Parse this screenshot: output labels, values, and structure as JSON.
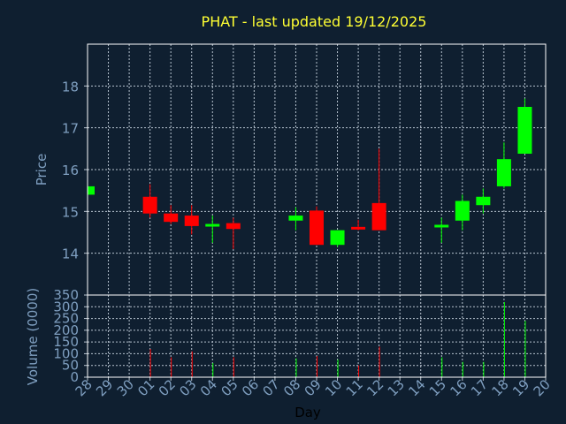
{
  "chart_data": {
    "type": "candlestick",
    "title": "PHAT - last updated 19/12/2025",
    "xlabel": "Day",
    "price_panel": {
      "ylabel": "Price",
      "yticks": [
        14,
        15,
        16,
        17,
        18
      ],
      "ylim": [
        13.0,
        19.0
      ],
      "grid": true
    },
    "volume_panel": {
      "ylabel": "Volume (0000)",
      "yticks": [
        0,
        50,
        100,
        150,
        200,
        250,
        300,
        350
      ],
      "ylim": [
        0,
        350
      ],
      "grid": true
    },
    "x_ticks": [
      "28",
      "29",
      "30",
      "01",
      "02",
      "03",
      "04",
      "05",
      "06",
      "07",
      "08",
      "09",
      "10",
      "11",
      "12",
      "13",
      "14",
      "15",
      "16",
      "17",
      "18",
      "19",
      "20"
    ],
    "colors": {
      "up": "#00ff00",
      "down": "#ff0000",
      "title": "#ffff33",
      "axis_text": "#7f9fc0",
      "grid": "#b8c4d0",
      "background": "#0f1f30"
    },
    "candles": [
      {
        "day": "28",
        "open": 15.4,
        "high": 15.6,
        "low": 15.4,
        "close": 15.6,
        "volume": 0
      },
      {
        "day": "01",
        "open": 15.35,
        "high": 15.65,
        "low": 14.85,
        "close": 14.95,
        "volume": 120
      },
      {
        "day": "02",
        "open": 14.95,
        "high": 15.15,
        "low": 14.7,
        "close": 14.75,
        "volume": 85
      },
      {
        "day": "03",
        "open": 14.9,
        "high": 15.15,
        "low": 14.45,
        "close": 14.65,
        "volume": 110
      },
      {
        "day": "04",
        "open": 14.68,
        "high": 14.9,
        "low": 14.25,
        "close": 14.7,
        "volume": 60
      },
      {
        "day": "05",
        "open": 14.72,
        "high": 14.85,
        "low": 14.1,
        "close": 14.58,
        "volume": 85
      },
      {
        "day": "08",
        "open": 14.78,
        "high": 15.1,
        "low": 14.55,
        "close": 14.9,
        "volume": 80
      },
      {
        "day": "09",
        "open": 15.02,
        "high": 15.12,
        "low": 14.2,
        "close": 14.2,
        "volume": 90
      },
      {
        "day": "10",
        "open": 14.2,
        "high": 14.55,
        "low": 14.15,
        "close": 14.55,
        "volume": 75
      },
      {
        "day": "11",
        "open": 14.63,
        "high": 14.8,
        "low": 14.55,
        "close": 14.57,
        "volume": 50
      },
      {
        "day": "12",
        "open": 15.2,
        "high": 16.5,
        "low": 14.55,
        "close": 14.55,
        "volume": 130
      },
      {
        "day": "15",
        "open": 14.62,
        "high": 14.85,
        "low": 14.25,
        "close": 14.68,
        "volume": 85
      },
      {
        "day": "16",
        "open": 14.78,
        "high": 15.4,
        "low": 14.55,
        "close": 15.25,
        "volume": 65
      },
      {
        "day": "17",
        "open": 15.15,
        "high": 15.55,
        "low": 14.95,
        "close": 15.35,
        "volume": 65
      },
      {
        "day": "18",
        "open": 15.6,
        "high": 16.65,
        "low": 15.55,
        "close": 16.25,
        "volume": 320
      },
      {
        "day": "19",
        "open": 16.38,
        "high": 17.7,
        "low": 16.38,
        "close": 17.5,
        "volume": 240
      }
    ]
  }
}
